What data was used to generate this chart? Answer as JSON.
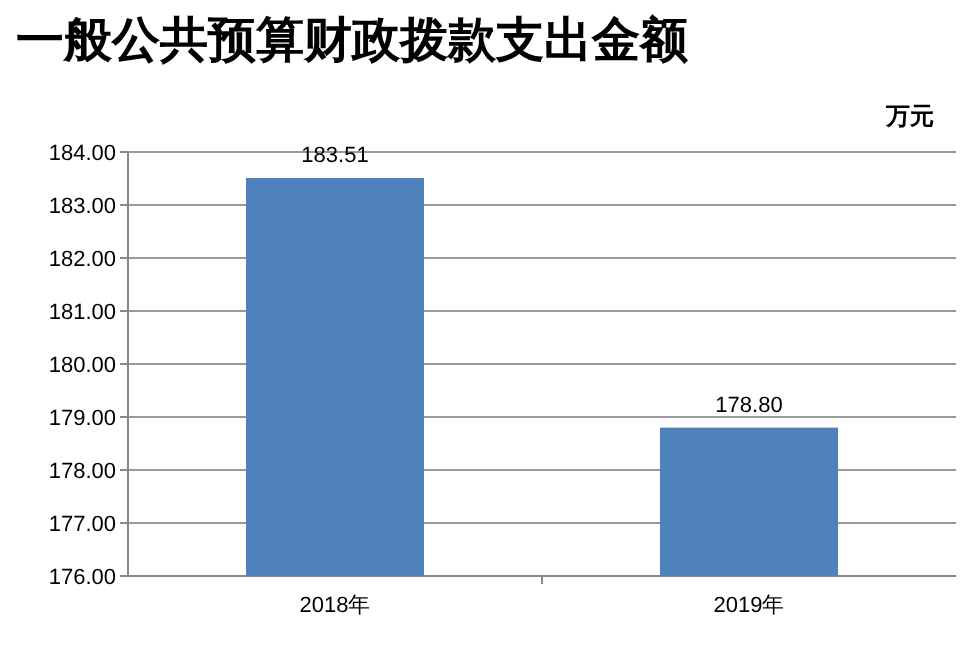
{
  "chart_data": {
    "type": "bar",
    "title": "一般公共预算财政拨款支出金额",
    "ylabel": "万元",
    "categories": [
      "2018年",
      "2019年"
    ],
    "series": [
      {
        "color": "#4f81bd",
        "values": [
          183.51,
          178.8
        ]
      }
    ],
    "value_labels": [
      "183.51",
      "178.80"
    ],
    "ylim": [
      176,
      184
    ],
    "yticks": [
      {
        "value": 176,
        "label": "176.00"
      },
      {
        "value": 177,
        "label": "177.00"
      },
      {
        "value": 178,
        "label": "178.00"
      },
      {
        "value": 179,
        "label": "179.00"
      },
      {
        "value": 180,
        "label": "180.00"
      },
      {
        "value": 181,
        "label": "181.00"
      },
      {
        "value": 182,
        "label": "182.00"
      },
      {
        "value": 183,
        "label": "183.00"
      },
      {
        "value": 184,
        "label": "184.00"
      }
    ],
    "grid": "y"
  }
}
